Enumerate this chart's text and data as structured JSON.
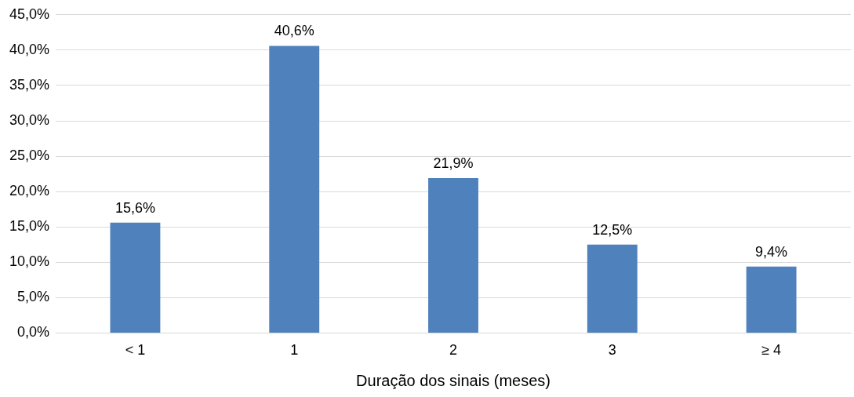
{
  "chart_data": {
    "type": "bar",
    "xlabel": "Duração dos sinais (meses)",
    "categories": [
      "< 1",
      "1",
      "2",
      "3",
      "≥ 4"
    ],
    "values": [
      15.6,
      40.6,
      21.9,
      12.5,
      9.4
    ],
    "value_labels": [
      "15,6%",
      "40,6%",
      "21,9%",
      "12,5%",
      "9,4%"
    ],
    "color": "#4f81bd",
    "ylim": [
      0,
      45
    ],
    "yticks": [
      {
        "value": 0,
        "label": "0,0%"
      },
      {
        "value": 5,
        "label": "5,0%"
      },
      {
        "value": 10,
        "label": "10,0%"
      },
      {
        "value": 15,
        "label": "15,0%"
      },
      {
        "value": 20,
        "label": "20,0%"
      },
      {
        "value": 25,
        "label": "25,0%"
      },
      {
        "value": 30,
        "label": "30,0%"
      },
      {
        "value": 35,
        "label": "35,0%"
      },
      {
        "value": 40,
        "label": "40,0%"
      },
      {
        "value": 45,
        "label": "45,0%"
      }
    ],
    "grid": "y"
  }
}
